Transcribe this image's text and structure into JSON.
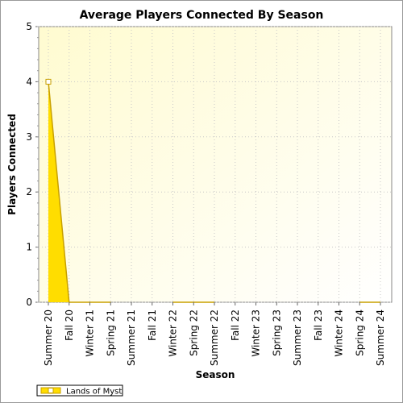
{
  "chart_data": {
    "type": "area",
    "title": "Average Players Connected By Season",
    "xlabel": "Season",
    "ylabel": "Players Connected",
    "ylim": [
      0,
      5
    ],
    "yticks": [
      0,
      1,
      2,
      3,
      4,
      5
    ],
    "grid": true,
    "legend_position": "bottom-left",
    "categories": [
      "Summer 20",
      "Fall 20",
      "Winter 21",
      "Spring 21",
      "Summer 21",
      "Fall 21",
      "Winter 22",
      "Spring 22",
      "Summer 22",
      "Fall 22",
      "Winter 23",
      "Spring 23",
      "Summer 23",
      "Fall 23",
      "Winter 24",
      "Spring 24",
      "Summer 24"
    ],
    "series": [
      {
        "name": "Lands of Myst",
        "color": "#ffdd00",
        "line_color": "#c8a000",
        "values": [
          4,
          0,
          0,
          0,
          null,
          null,
          0,
          0,
          0,
          null,
          null,
          null,
          null,
          null,
          null,
          0,
          0
        ]
      }
    ]
  }
}
